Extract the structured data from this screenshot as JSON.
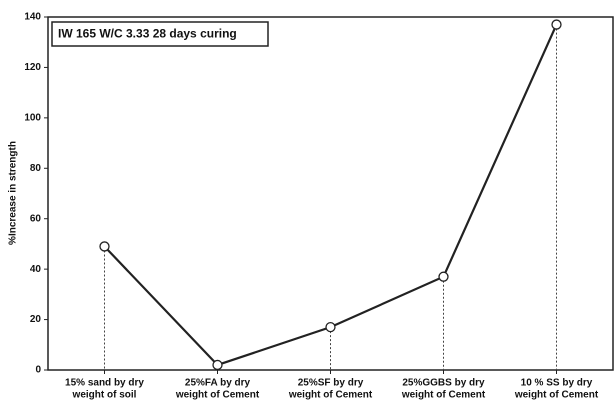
{
  "chart_data": {
    "type": "line",
    "annotation": "IW 165 W/C 3.33 28 days curing",
    "y_label": "%Increase in strength",
    "categories": [
      [
        "15% sand by dry",
        "weight of soil"
      ],
      [
        "25%FA by dry",
        "weight of Cement"
      ],
      [
        "25%SF by dry",
        "weight of Cement"
      ],
      [
        "25%GGBS by dry",
        "weight of Cement"
      ],
      [
        "10 % SS by dry",
        "weight of Cement"
      ]
    ],
    "values": [
      49,
      2,
      17,
      37,
      137
    ],
    "color": "#222222",
    "ylim": [
      0,
      140
    ],
    "yticks": [
      0,
      20,
      40,
      60,
      80,
      100,
      120,
      140
    ],
    "grid": false,
    "drop_lines": true
  }
}
